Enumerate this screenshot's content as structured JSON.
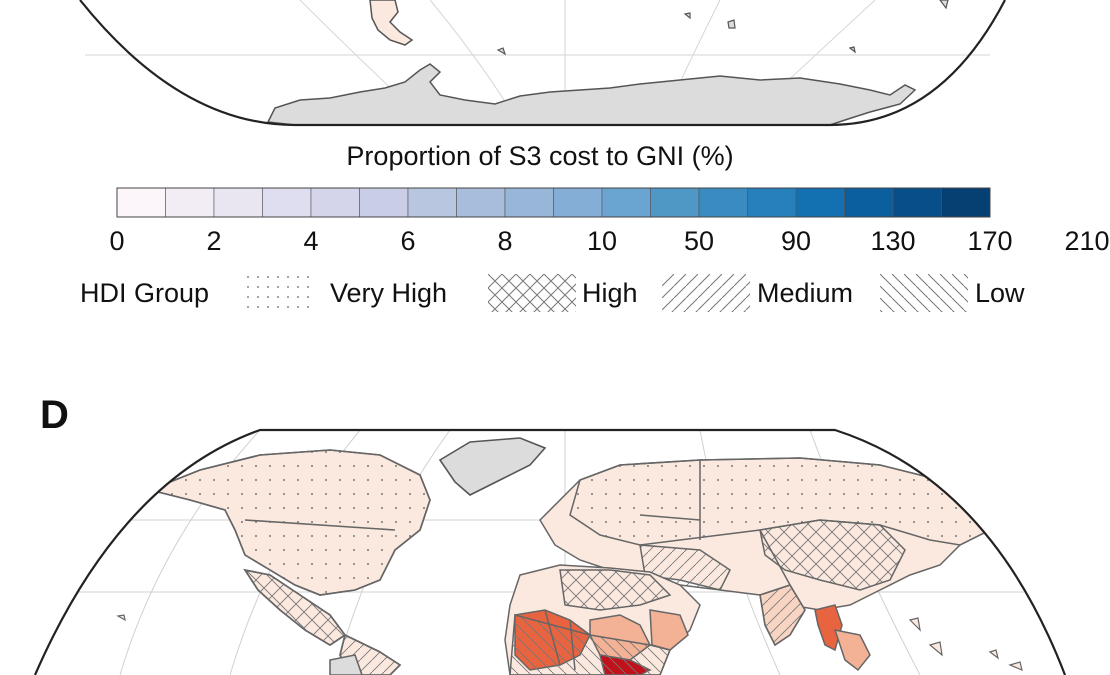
{
  "legend": {
    "title": "Proportion of S3 cost to GNI (%)",
    "colors": [
      "#fcf5f9",
      "#f2edf5",
      "#e9e6f2",
      "#dfdef0",
      "#d4d5ea",
      "#c9cde5",
      "#b9c6e0",
      "#a8bcdb",
      "#97b6d8",
      "#85aed6",
      "#6aa4d0",
      "#4f98c6",
      "#3a8cc0",
      "#2680bc",
      "#1370b1",
      "#0b5f9e",
      "#084f89",
      "#063f71"
    ],
    "ticks": [
      "0",
      "2",
      "4",
      "6",
      "8",
      "10",
      "50",
      "90",
      "130",
      "170",
      "210"
    ]
  },
  "hdi": {
    "title": "HDI Group",
    "groups": [
      {
        "label": "Very High",
        "pattern": "dots"
      },
      {
        "label": "High",
        "pattern": "crosshatch"
      },
      {
        "label": "Medium",
        "pattern": "diagonal"
      },
      {
        "label": "Low",
        "pattern": "backdiagonal"
      }
    ]
  },
  "panel_letter": "D",
  "map_colors": {
    "land_nodata": "#dcdcdc",
    "land_low_value": "#fbe9e0",
    "land_mid_value": "#f3b196",
    "land_high_value": "#e8633f",
    "land_very_high_value": "#c1121c",
    "border": "#666666",
    "graticule": "#cfcfcf",
    "frame": "#222222"
  }
}
